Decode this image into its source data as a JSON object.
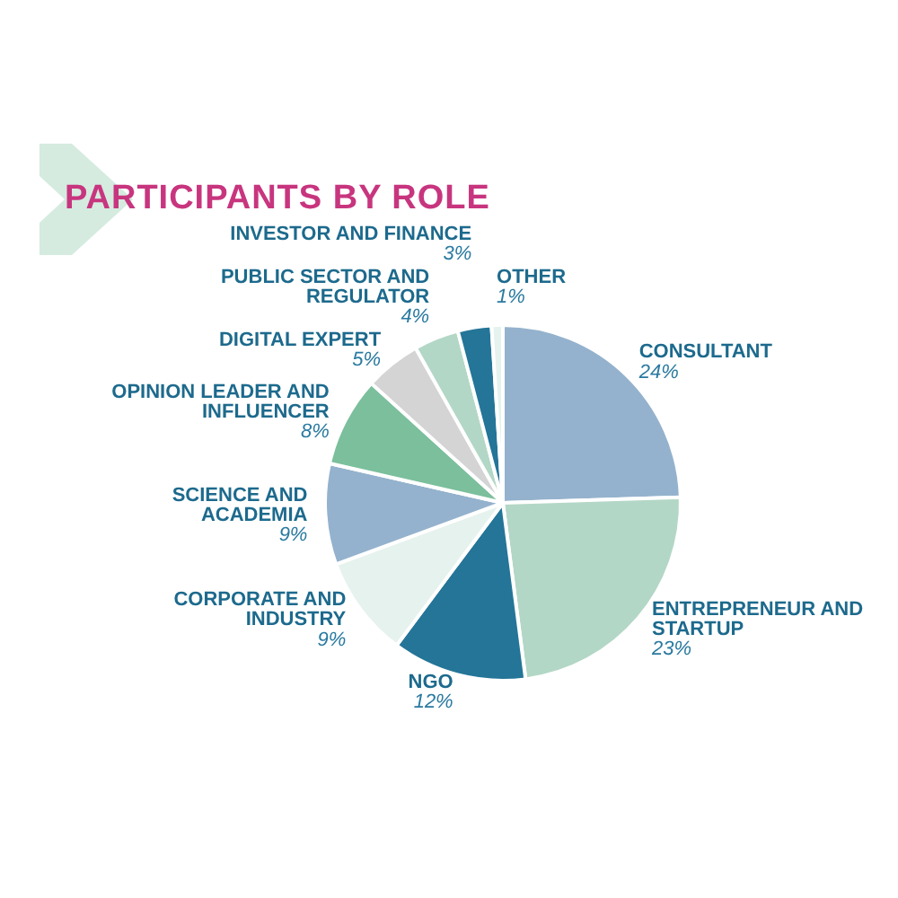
{
  "chart_data": {
    "type": "pie",
    "title": "PARTICIPANTS BY ROLE",
    "categories": [
      "CONSULTANT",
      "ENTREPRENEUR AND STARTUP",
      "NGO",
      "CORPORATE AND INDUSTRY",
      "SCIENCE AND ACADEMIA",
      "OPINION LEADER AND INFLUENCER",
      "DIGITAL EXPERT",
      "PUBLIC SECTOR AND REGULATOR",
      "INVESTOR AND FINANCE",
      "OTHER"
    ],
    "values": [
      24,
      23,
      12,
      9,
      9,
      8,
      5,
      4,
      3,
      1
    ],
    "value_labels": [
      "24%",
      "23%",
      "12%",
      "9%",
      "9%",
      "8%",
      "5%",
      "4%",
      "3%",
      "1%"
    ],
    "colors": [
      "#94b2cd",
      "#b3d7c6",
      "#247598",
      "#e6f2ed",
      "#94b2cd",
      "#7bbf9c",
      "#d4d4d4",
      "#b3d7c6",
      "#247598",
      "#e6f2ed"
    ],
    "legend": false
  }
}
